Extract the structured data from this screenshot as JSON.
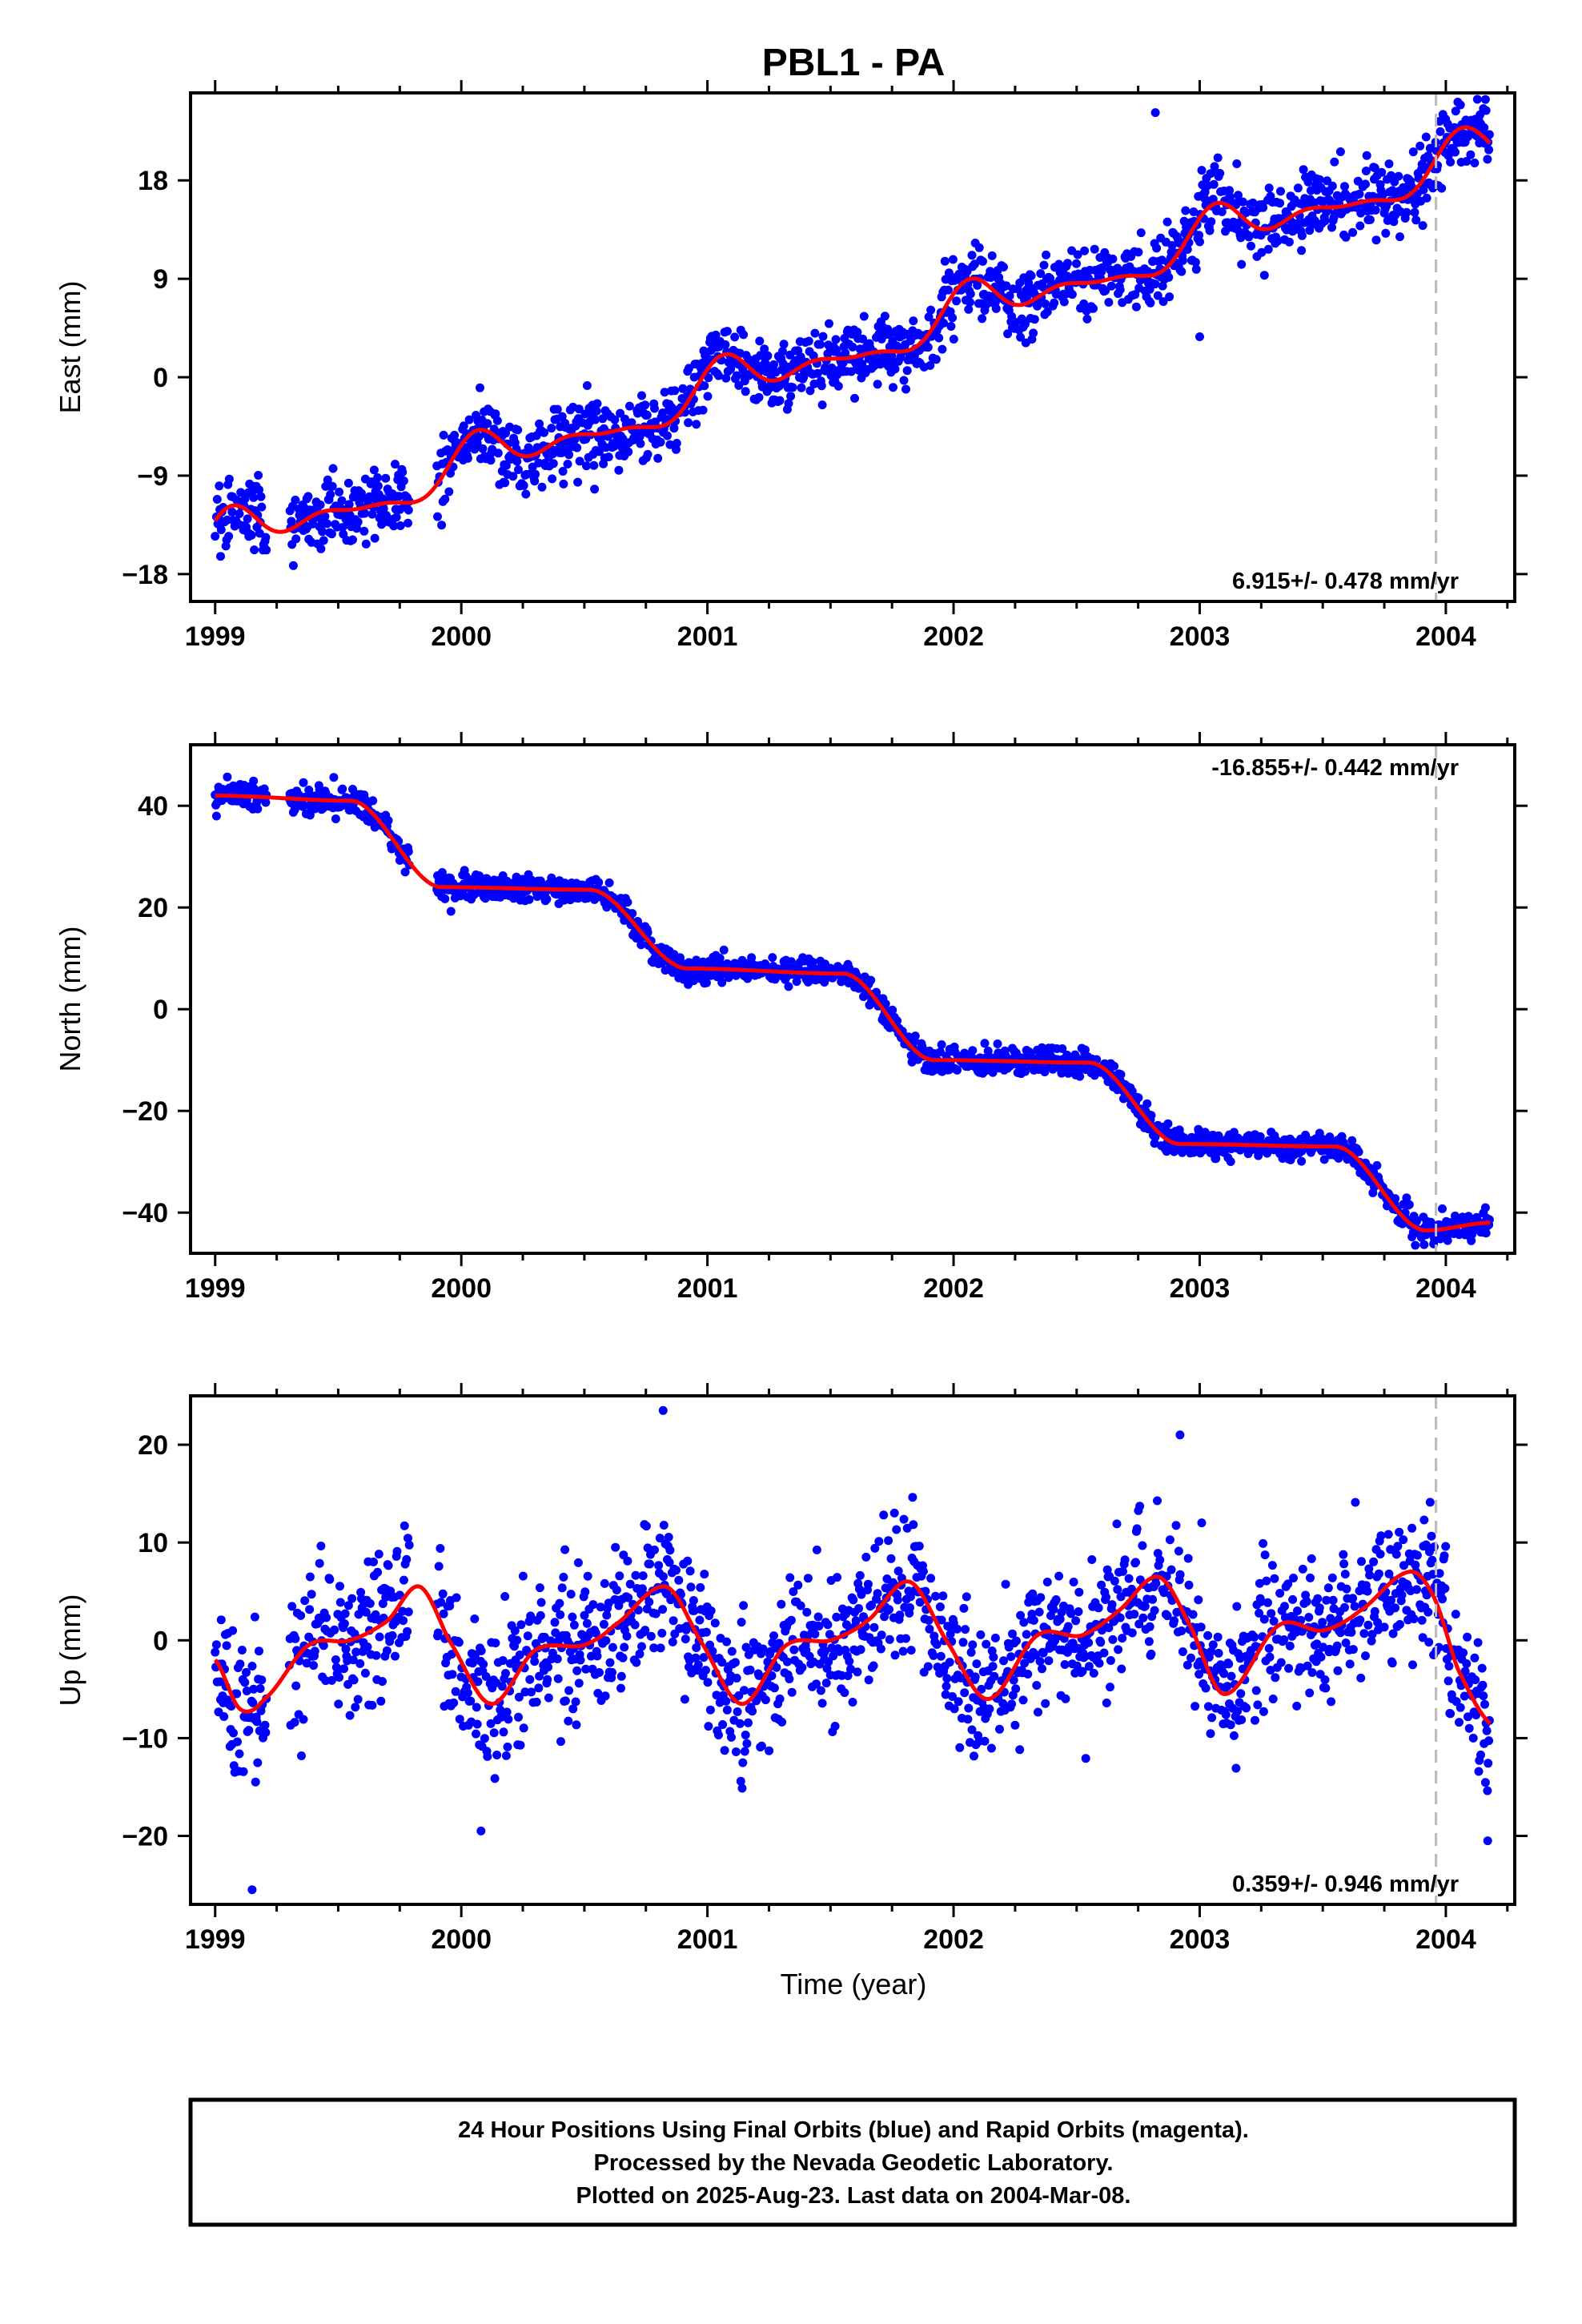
{
  "title": "PBL1 - PA",
  "xlabel": "Time (year)",
  "caption": [
    "24 Hour Positions Using Final Orbits (blue) and Rapid Orbits (magenta).",
    "Processed by the Nevada Geodetic Laboratory.",
    "Plotted on 2025-Aug-23. Last data on 2004-Mar-08."
  ],
  "colors": {
    "points": "#0000ff",
    "fit": "#ff0000",
    "marker_line": "#bbbbbb",
    "frame": "#000000"
  },
  "chart_data": [
    {
      "type": "scatter",
      "ylabel": "East (mm)",
      "rate_label": "6.915+/- 0.478 mm/yr",
      "rate_position": "bottom-right",
      "xlim": [
        1998.9,
        2004.28
      ],
      "ylim": [
        -20.5,
        26
      ],
      "xticks": [
        1999,
        2000,
        2001,
        2002,
        2003,
        2004
      ],
      "xtick_labels": [
        "1999",
        "2000",
        "2001",
        "2002",
        "2003",
        "2004"
      ],
      "yticks": [
        -18,
        -9,
        0,
        9,
        18
      ],
      "ytick_labels": [
        "−18",
        "−9",
        "0",
        "9",
        "18"
      ],
      "grid": false,
      "vertical_marker_x": 2003.96,
      "trend": {
        "intercept": -14.5,
        "ref": 1999.0,
        "rate_mm_yr": 6.915
      },
      "fit_seasonal": [
        0.0,
        0.95,
        1.0,
        0.75,
        0.95,
        0.9,
        0.4,
        0.45,
        0.3,
        0.1
      ],
      "noise": 1.6,
      "points_x_range": [
        1999.0,
        2004.18
      ],
      "gaps": [
        [
          1999.21,
          1999.3
        ],
        [
          1999.79,
          1999.9
        ]
      ],
      "outliers": [
        {
          "x": 2003.0,
          "y": 3.7
        },
        {
          "x": 2002.82,
          "y": 24.2
        }
      ]
    },
    {
      "type": "scatter",
      "ylabel": "North (mm)",
      "rate_label": "-16.855+/- 0.442 mm/yr",
      "rate_position": "top-right",
      "xlim": [
        1998.9,
        2004.28
      ],
      "ylim": [
        -48,
        52
      ],
      "xticks": [
        1999,
        2000,
        2001,
        2002,
        2003,
        2004
      ],
      "xtick_labels": [
        "1999",
        "2000",
        "2001",
        "2002",
        "2003",
        "2004"
      ],
      "yticks": [
        -40,
        -20,
        0,
        20,
        40
      ],
      "ytick_labels": [
        "−40",
        "−20",
        "0",
        "20",
        "40"
      ],
      "grid": false,
      "vertical_marker_x": 2003.96,
      "steps": [
        {
          "x_start": 1999.0,
          "x_end": 1999.55,
          "y_start": 42,
          "y_end": 41
        },
        {
          "x_start": 1999.55,
          "x_end": 1999.92,
          "y_start": 41,
          "y_end": 24
        },
        {
          "x_start": 1999.92,
          "x_end": 2000.52,
          "y_start": 24,
          "y_end": 23.5
        },
        {
          "x_start": 2000.52,
          "x_end": 2000.92,
          "y_start": 23.5,
          "y_end": 8
        },
        {
          "x_start": 2000.92,
          "x_end": 2001.55,
          "y_start": 8,
          "y_end": 7
        },
        {
          "x_start": 2001.55,
          "x_end": 2001.92,
          "y_start": 7,
          "y_end": -10
        },
        {
          "x_start": 2001.92,
          "x_end": 2002.55,
          "y_start": -10,
          "y_end": -10.5
        },
        {
          "x_start": 2002.55,
          "x_end": 2002.92,
          "y_start": -10.5,
          "y_end": -26.5
        },
        {
          "x_start": 2002.92,
          "x_end": 2003.55,
          "y_start": -26.5,
          "y_end": -27
        },
        {
          "x_start": 2003.55,
          "x_end": 2003.92,
          "y_start": -27,
          "y_end": -43.5
        },
        {
          "x_start": 2003.92,
          "x_end": 2004.18,
          "y_start": -43.5,
          "y_end": -42
        }
      ],
      "noise": 1.3,
      "points_x_range": [
        1999.0,
        2004.18
      ],
      "gaps": [
        [
          1999.21,
          1999.3
        ],
        [
          1999.79,
          1999.9
        ]
      ],
      "outliers": []
    },
    {
      "type": "scatter",
      "ylabel": "Up (mm)",
      "rate_label": "0.359+/- 0.946 mm/yr",
      "rate_position": "bottom-right",
      "xlim": [
        1998.9,
        2004.28
      ],
      "ylim": [
        -27,
        25
      ],
      "xticks": [
        1999,
        2000,
        2001,
        2002,
        2003,
        2004
      ],
      "xtick_labels": [
        "1999",
        "2000",
        "2001",
        "2002",
        "2003",
        "2004"
      ],
      "yticks": [
        -20,
        -10,
        0,
        10,
        20
      ],
      "ytick_labels": [
        "−20",
        "−10",
        "0",
        "10",
        "20"
      ],
      "grid": false,
      "vertical_marker_x": 2003.96,
      "fit_knots": [
        [
          1999.0,
          -2
        ],
        [
          1999.1,
          -7
        ],
        [
          1999.2,
          -6
        ],
        [
          1999.38,
          -0.5
        ],
        [
          1999.55,
          0
        ],
        [
          1999.7,
          2
        ],
        [
          1999.83,
          5.5
        ],
        [
          1999.95,
          0
        ],
        [
          2000.12,
          -6.5
        ],
        [
          2000.3,
          -1
        ],
        [
          2000.5,
          -0.5
        ],
        [
          2000.62,
          1.5
        ],
        [
          2000.83,
          5.5
        ],
        [
          2000.97,
          0
        ],
        [
          2001.14,
          -6.5
        ],
        [
          2001.32,
          -0.5
        ],
        [
          2001.5,
          0
        ],
        [
          2001.65,
          2
        ],
        [
          2001.82,
          6
        ],
        [
          2001.97,
          0
        ],
        [
          2002.14,
          -6
        ],
        [
          2002.34,
          0.5
        ],
        [
          2002.52,
          0.5
        ],
        [
          2002.67,
          3
        ],
        [
          2002.83,
          6.5
        ],
        [
          2002.95,
          2
        ],
        [
          2003.1,
          -5.5
        ],
        [
          2003.32,
          1.5
        ],
        [
          2003.5,
          1
        ],
        [
          2003.65,
          3
        ],
        [
          2003.85,
          7
        ],
        [
          2003.95,
          4.5
        ],
        [
          2004.05,
          -3
        ],
        [
          2004.18,
          -8.5
        ]
      ],
      "noise": 3.6,
      "points_x_range": [
        1999.0,
        2004.18
      ],
      "gaps": [
        [
          1999.21,
          1999.3
        ],
        [
          1999.79,
          1999.9
        ]
      ],
      "outliers": [
        {
          "x": 1999.15,
          "y": -25.5
        },
        {
          "x": 2000.08,
          "y": -19.5
        },
        {
          "x": 2000.82,
          "y": 23.5
        },
        {
          "x": 2002.92,
          "y": 21
        },
        {
          "x": 2004.17,
          "y": -20.5
        }
      ]
    }
  ]
}
